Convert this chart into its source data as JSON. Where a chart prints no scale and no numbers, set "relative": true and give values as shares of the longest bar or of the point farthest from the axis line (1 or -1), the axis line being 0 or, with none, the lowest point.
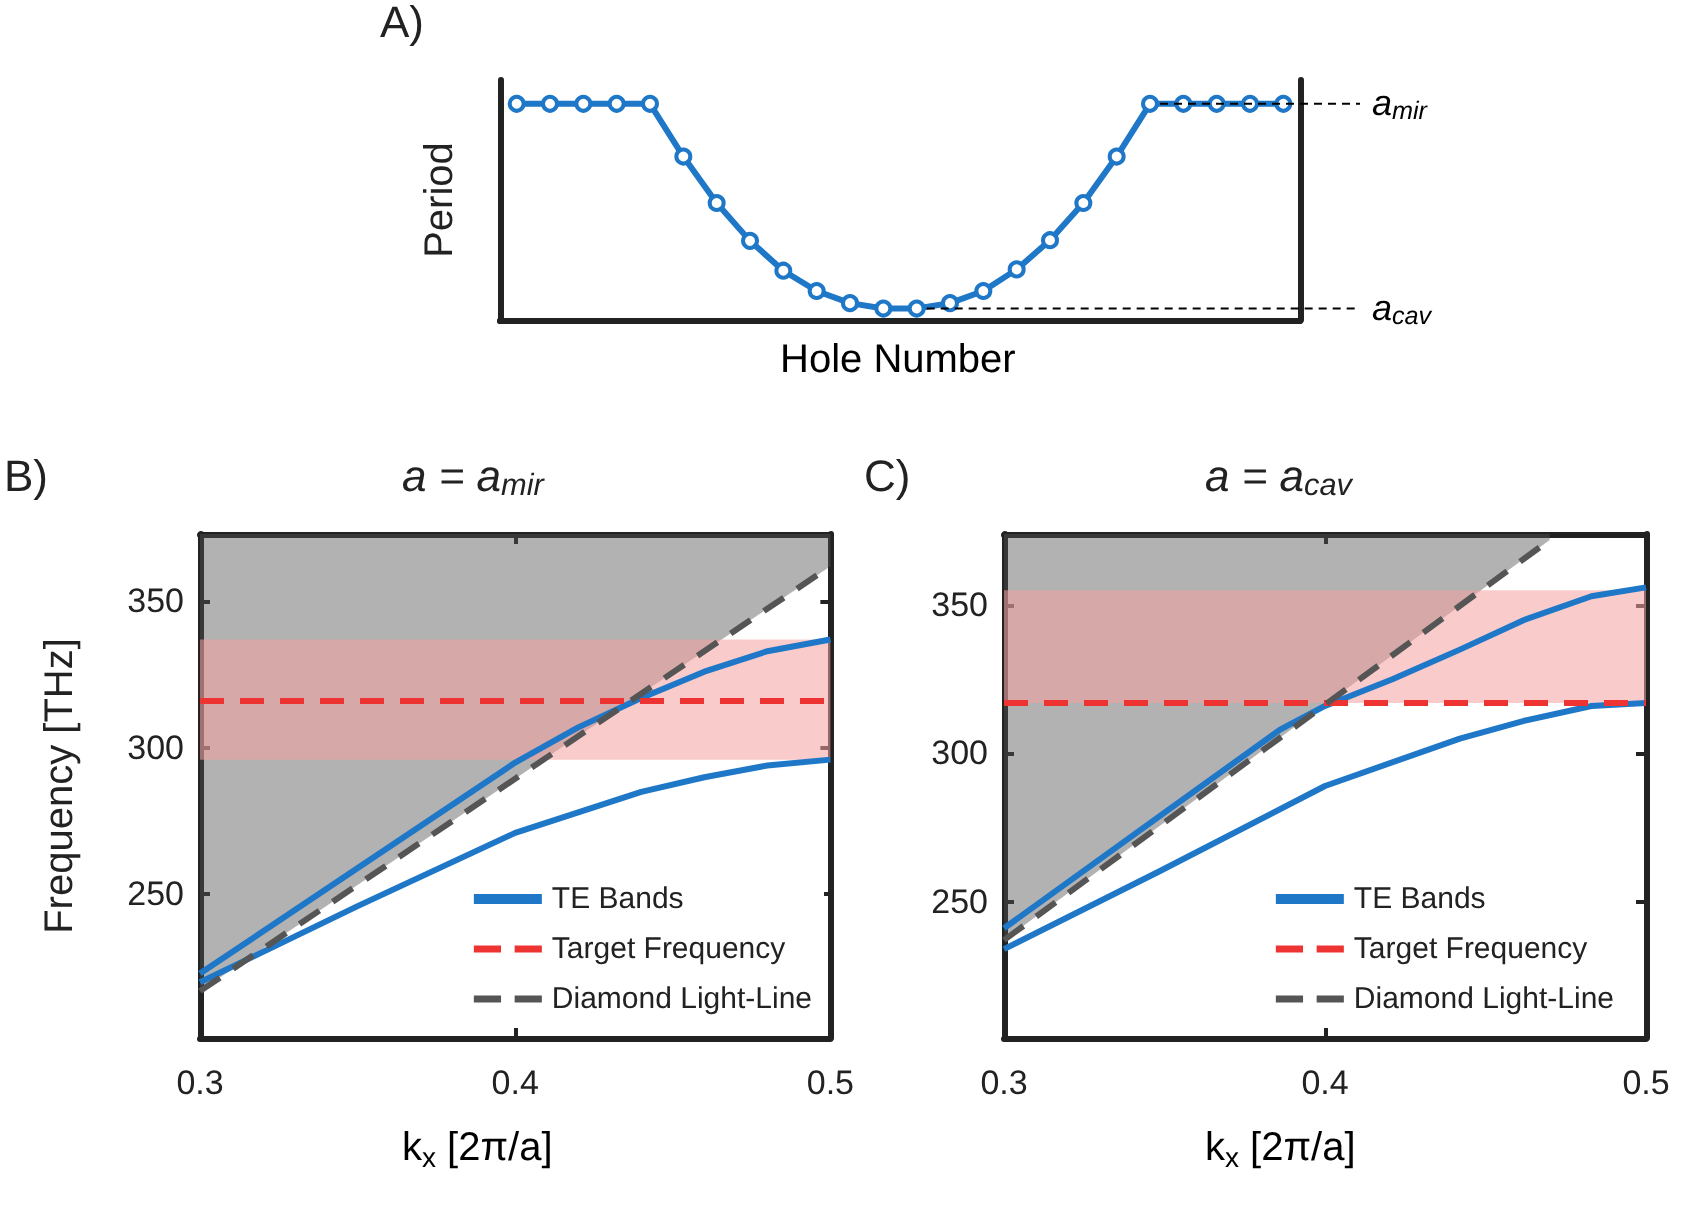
{
  "chart_data": [
    {
      "type": "line",
      "xlabel": "Hole Number",
      "ylabel": "Period",
      "annotations": [
        "A)"
      ],
      "relative": true,
      "tick_labels": false,
      "grid": false,
      "legend": false,
      "marker": "circle",
      "categories": [
        null,
        null,
        null,
        null,
        null,
        null,
        null,
        null,
        null,
        null,
        null,
        null,
        null,
        null,
        null,
        null,
        null,
        null,
        null,
        null,
        null,
        null,
        null,
        null
      ],
      "series": [
        {
          "color": "#1f77c8",
          "values": [
            1,
            1,
            1,
            1,
            1,
            0.756,
            0.541,
            0.366,
            0.228,
            0.134,
            0.078,
            0.053,
            0.053,
            0.078,
            0.134,
            0.234,
            0.369,
            0.541,
            0.756,
            1,
            1,
            1,
            1,
            1
          ]
        }
      ],
      "ref_lines": [
        {
          "axis": "y",
          "value": 1,
          "label": "a$_{mir}$",
          "line_style": "dashed",
          "color": "#000000"
        },
        {
          "axis": "y",
          "value": 0.053,
          "label": "a$_{cav}$",
          "line_style": "dashed",
          "color": "#000000"
        }
      ]
    },
    {
      "type": "line",
      "title": "a = a$_{mir}$",
      "annotations": [
        "B)"
      ],
      "xlabel": "k$_{x}$ [2π/a]",
      "ylabel": "Frequency [THz]",
      "xlim": [
        0.3,
        0.5
      ],
      "xticks": [
        0.3,
        0.4,
        0.5
      ],
      "ylim": [
        201,
        373
      ],
      "yticks": [
        250,
        300,
        350
      ],
      "grid": false,
      "legend": "bottom right",
      "marker": "none",
      "series": [
        {
          "name": "TE Bands",
          "color": "#1f77c8",
          "x": [
            0.3,
            0.4,
            0.42,
            0.44,
            0.46,
            0.48,
            0.5
          ],
          "values": [
            223,
            295,
            307,
            317,
            326,
            333,
            337
          ]
        },
        {
          "color": "#1f77c8",
          "x": [
            0.3,
            0.35,
            0.4,
            0.44,
            0.46,
            0.48,
            0.5
          ],
          "values": [
            220,
            246,
            271,
            285,
            290,
            294,
            296
          ]
        },
        {
          "name": "Target Frequency",
          "color": "#ee3333",
          "line_style": "dashed",
          "x": [
            0.3,
            0.5
          ],
          "values": [
            316,
            316
          ]
        },
        {
          "name": "Diamond Light-Line",
          "color": "#555555",
          "line_style": "dashed",
          "x": [
            0.3,
            0.5
          ],
          "values": [
            217,
            362
          ],
          "lower": [
            217,
            362
          ],
          "upper": [
            373,
            373
          ]
        }
      ],
      "bands": [
        {
          "axis": "y",
          "from": 296,
          "to": 337,
          "color": "#f4a0a0"
        }
      ]
    },
    {
      "type": "line",
      "title": "a = a$_{cav}$",
      "annotations": [
        "C)"
      ],
      "xlabel": "k$_{x}$ [2π/a]",
      "xlim": [
        0.3,
        0.5
      ],
      "xticks": [
        0.3,
        0.4,
        0.5
      ],
      "ylim": [
        204,
        374
      ],
      "yticks": [
        250,
        300,
        350
      ],
      "grid": false,
      "legend": "bottom right",
      "marker": "none",
      "series": [
        {
          "name": "TE Bands",
          "color": "#1f77c8",
          "x": [
            0.3,
            0.35,
            0.386,
            0.4,
            0.421,
            0.442,
            0.462,
            0.483,
            0.5
          ],
          "values": [
            241,
            280,
            308,
            316,
            325,
            335,
            345,
            353,
            356
          ]
        },
        {
          "color": "#1f77c8",
          "x": [
            0.3,
            0.348,
            0.4,
            0.442,
            0.462,
            0.483,
            0.5
          ],
          "values": [
            234,
            260,
            289,
            305,
            311,
            316,
            317
          ]
        },
        {
          "name": "Target Frequency",
          "color": "#ee3333",
          "line_style": "dashed",
          "x": [
            0.3,
            0.5
          ],
          "values": [
            317,
            317
          ]
        },
        {
          "name": "Diamond Light-Line",
          "color": "#555555",
          "line_style": "dashed",
          "x": [
            0.3,
            0.47
          ],
          "values": [
            237,
            372
          ],
          "lower": [
            237,
            372
          ],
          "upper": [
            374,
            374
          ]
        }
      ],
      "bands": [
        {
          "axis": "y",
          "from": 317,
          "to": 355,
          "color": "#f4a0a0"
        }
      ]
    }
  ]
}
